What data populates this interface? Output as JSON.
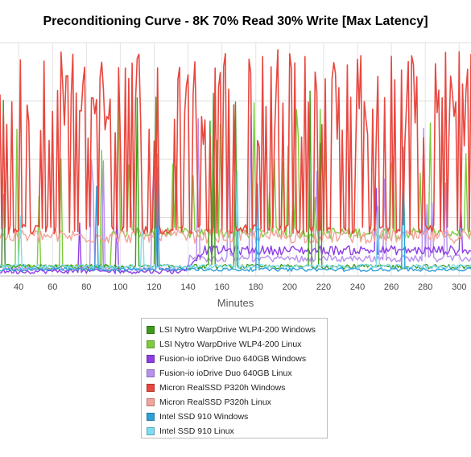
{
  "chart_data": {
    "type": "line",
    "title": "Preconditioning Curve - 8K 70% Read 30% Write [Max Latency]",
    "xlabel": "Minutes",
    "ylabel": "",
    "xlim": [
      29,
      307
    ],
    "ylim": [
      0,
      100
    ],
    "xticks": [
      40,
      60,
      80,
      100,
      120,
      140,
      160,
      180,
      200,
      220,
      240,
      260,
      280,
      300
    ],
    "grid": true,
    "legend_position": "bottom",
    "series": [
      {
        "name": "LSI Nytro WarpDrive WLP4-200 Windows",
        "color": "#3f9a1a",
        "kind": "lsi_win"
      },
      {
        "name": "LSI Nytro WarpDrive WLP4-200 Linux",
        "color": "#7ccc3c",
        "kind": "lsi_lin"
      },
      {
        "name": "Fusion-io ioDrive Duo 640GB Windows",
        "color": "#8e3ee6",
        "kind": "fio_win"
      },
      {
        "name": "Fusion-io ioDrive Duo 640GB Linux",
        "color": "#b98ff0",
        "kind": "fio_lin"
      },
      {
        "name": "Micron RealSSD P320h Windows",
        "color": "#e8473f",
        "kind": "mic_win"
      },
      {
        "name": "Micron RealSSD P320h Linux",
        "color": "#f4a39a",
        "kind": "mic_lin"
      },
      {
        "name": "Intel SSD 910 Windows",
        "color": "#2f9fd8",
        "kind": "int_win"
      },
      {
        "name": "Intel SSD 910 Linux",
        "color": "#7fdcf2",
        "kind": "int_lin"
      }
    ]
  }
}
